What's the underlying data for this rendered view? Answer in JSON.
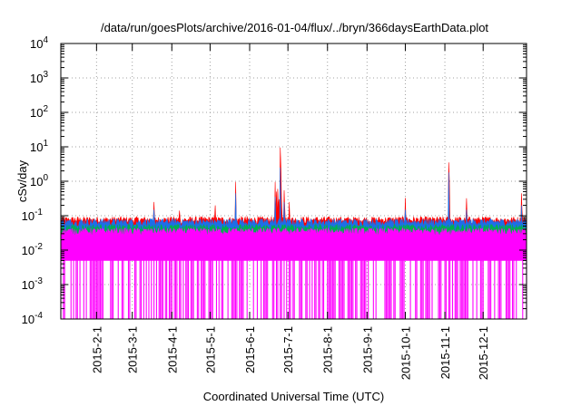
{
  "chart_data": {
    "type": "line",
    "title": "/data/run/goesPlots/archive/2016-01-04/flux/../bryn/366daysEarthData.plot",
    "xlabel": "Coordinated Universal Time (UTC)",
    "ylabel": "cSv/day",
    "yscale": "log",
    "ylim": [
      0.0001,
      10000
    ],
    "y_ticks": [
      {
        "value": 0.0001,
        "base": "10",
        "exp": "-4"
      },
      {
        "value": 0.001,
        "base": "10",
        "exp": "-3"
      },
      {
        "value": 0.01,
        "base": "10",
        "exp": "-2"
      },
      {
        "value": 0.1,
        "base": "10",
        "exp": "-1"
      },
      {
        "value": 1,
        "base": "10",
        "exp": "0"
      },
      {
        "value": 10,
        "base": "10",
        "exp": "1"
      },
      {
        "value": 100,
        "base": "10",
        "exp": "2"
      },
      {
        "value": 1000,
        "base": "10",
        "exp": "3"
      },
      {
        "value": 10000,
        "base": "10",
        "exp": "4"
      }
    ],
    "xlim": [
      "2015-01-04",
      "2016-01-04"
    ],
    "x_ticks": [
      "2015-2-1",
      "2015-3-1",
      "2015-4-1",
      "2015-5-1",
      "2015-6-1",
      "2015-7-1",
      "2015-8-1",
      "2015-9-1",
      "2015-10-1",
      "2015-11-1",
      "2015-12-1"
    ],
    "grid": true,
    "series": [
      {
        "color": "#ff0000",
        "baseline": 0.075,
        "spikes": [
          [
            "2015-03-18",
            0.25
          ],
          [
            "2015-04-07",
            0.14
          ],
          [
            "2015-05-05",
            0.2
          ],
          [
            "2015-05-21",
            0.95
          ],
          [
            "2015-06-21",
            0.95
          ],
          [
            "2015-06-22",
            0.5
          ],
          [
            "2015-06-23",
            0.6
          ],
          [
            "2015-06-24",
            0.3
          ],
          [
            "2015-06-26",
            0.3
          ],
          [
            "2015-06-25",
            9.5
          ],
          [
            "2015-06-28",
            0.55
          ],
          [
            "2015-07-02",
            0.25
          ],
          [
            "2015-10-01",
            0.33
          ],
          [
            "2015-11-04",
            3.5
          ],
          [
            "2015-11-18",
            0.32
          ],
          [
            "2015-12-31",
            0.45
          ]
        ]
      },
      {
        "color": "#1e6ee8",
        "baseline": 0.065,
        "spikes": [
          [
            "2015-03-18",
            0.15
          ],
          [
            "2015-05-21",
            0.45
          ],
          [
            "2015-06-21",
            0.35
          ],
          [
            "2015-06-25",
            2.5
          ],
          [
            "2015-06-28",
            0.25
          ],
          [
            "2015-10-01",
            0.15
          ],
          [
            "2015-11-04",
            1.8
          ],
          [
            "2015-11-18",
            0.15
          ],
          [
            "2015-12-31",
            0.2
          ]
        ]
      },
      {
        "color": "#00b050",
        "baseline": 0.045,
        "spikes": []
      },
      {
        "color": "#ff00ff",
        "baseline": 0.035,
        "floor": 0.005,
        "min": 0.0001,
        "spikes": []
      }
    ]
  }
}
